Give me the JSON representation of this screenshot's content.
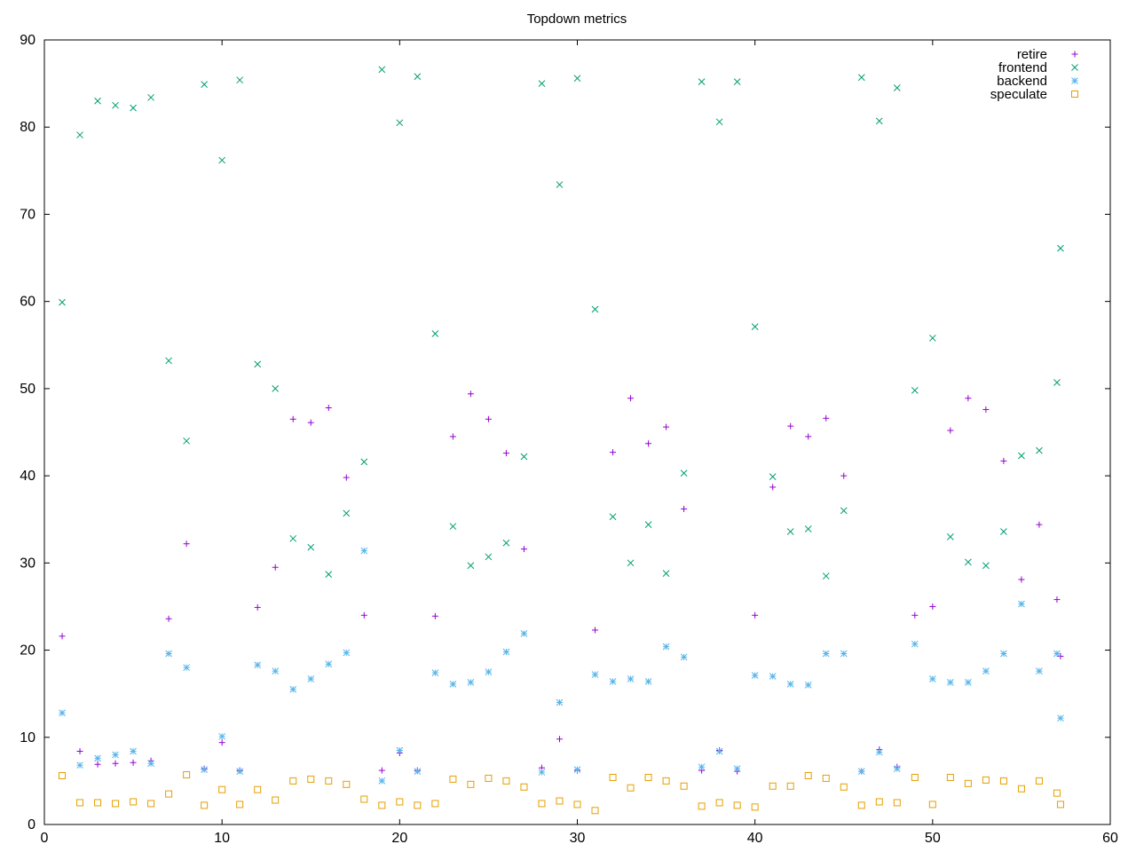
{
  "chart_data": {
    "type": "scatter",
    "title": "Topdown metrics",
    "xlabel": "",
    "ylabel": "",
    "xlim": [
      0,
      60
    ],
    "ylim": [
      0,
      90
    ],
    "xticks": [
      0,
      10,
      20,
      30,
      40,
      50,
      60
    ],
    "yticks": [
      0,
      10,
      20,
      30,
      40,
      50,
      60,
      70,
      80,
      90
    ],
    "grid": false,
    "legend_position": "top-right",
    "x": [
      1,
      2,
      3,
      4,
      5,
      6,
      7,
      8,
      9,
      10,
      11,
      12,
      13,
      14,
      15,
      16,
      17,
      18,
      19,
      20,
      21,
      22,
      23,
      24,
      25,
      26,
      27,
      28,
      29,
      30,
      31,
      32,
      33,
      34,
      35,
      36,
      37,
      38,
      39,
      40,
      41,
      42,
      43,
      44,
      45,
      46,
      47,
      48,
      49,
      50,
      51,
      52,
      53,
      54,
      55,
      56,
      57,
      57.2
    ],
    "series": [
      {
        "name": "retire",
        "color": "#9400d3",
        "marker": "plus",
        "values": [
          21.6,
          8.4,
          6.9,
          7.0,
          7.1,
          7.3,
          23.6,
          32.2,
          6.4,
          9.4,
          6.2,
          24.9,
          29.5,
          46.5,
          46.1,
          47.8,
          39.8,
          24.0,
          6.2,
          8.2,
          6.2,
          23.9,
          44.5,
          49.4,
          46.5,
          42.6,
          31.6,
          6.5,
          9.8,
          6.2,
          22.3,
          42.7,
          48.9,
          43.7,
          45.6,
          36.2,
          6.2,
          8.5,
          6.1,
          24.0,
          38.7,
          45.7,
          44.5,
          46.6,
          40.0,
          6.1,
          8.6,
          6.6,
          24.0,
          25.0,
          45.2,
          48.9,
          47.6,
          41.7,
          28.1,
          34.4,
          25.8,
          19.3
        ]
      },
      {
        "name": "frontend",
        "color": "#009e73",
        "marker": "cross",
        "values": [
          59.9,
          79.1,
          83.0,
          82.5,
          82.2,
          83.4,
          53.2,
          44.0,
          84.9,
          76.2,
          85.4,
          52.8,
          50.0,
          32.8,
          31.8,
          28.7,
          35.7,
          41.6,
          86.6,
          80.5,
          85.8,
          56.3,
          34.2,
          29.7,
          30.7,
          32.3,
          42.2,
          85.0,
          73.4,
          85.6,
          59.1,
          35.3,
          30.0,
          34.4,
          28.8,
          40.3,
          85.2,
          80.6,
          85.2,
          57.1,
          39.9,
          33.6,
          33.9,
          28.5,
          36.0,
          85.7,
          80.7,
          84.5,
          49.8,
          55.8,
          33.0,
          30.1,
          29.7,
          33.6,
          42.3,
          42.9,
          50.7,
          66.1
        ]
      },
      {
        "name": "backend",
        "color": "#56b4e9",
        "marker": "star",
        "values": [
          12.8,
          6.8,
          7.6,
          8.0,
          8.4,
          7.0,
          19.6,
          18.0,
          6.3,
          10.1,
          6.1,
          18.3,
          17.6,
          15.5,
          16.7,
          18.4,
          19.7,
          31.4,
          5.0,
          8.5,
          6.1,
          17.4,
          16.1,
          16.3,
          17.5,
          19.8,
          21.9,
          6.0,
          14.0,
          6.3,
          17.2,
          16.4,
          16.7,
          16.4,
          20.4,
          19.2,
          6.6,
          8.4,
          6.4,
          17.1,
          17.0,
          16.1,
          16.0,
          19.6,
          19.6,
          6.1,
          8.3,
          6.4,
          20.7,
          16.7,
          16.3,
          16.3,
          17.6,
          19.6,
          25.3,
          17.6,
          19.6,
          12.2
        ]
      },
      {
        "name": "speculate",
        "color": "#e69f00",
        "marker": "square",
        "values": [
          5.6,
          2.5,
          2.5,
          2.4,
          2.6,
          2.4,
          3.5,
          5.7,
          2.2,
          4.0,
          2.3,
          4.0,
          2.8,
          5.0,
          5.2,
          5.0,
          4.6,
          2.9,
          2.2,
          2.6,
          2.2,
          2.4,
          5.2,
          4.6,
          5.3,
          5.0,
          4.3,
          2.4,
          2.7,
          2.3,
          1.6,
          5.4,
          4.2,
          5.4,
          5.0,
          4.4,
          2.1,
          2.5,
          2.2,
          2.0,
          4.4,
          4.4,
          5.6,
          5.3,
          4.3,
          2.2,
          2.6,
          2.5,
          5.4,
          2.3,
          5.4,
          4.7,
          5.1,
          5.0,
          4.1,
          5.0,
          3.6,
          2.3
        ]
      }
    ]
  }
}
